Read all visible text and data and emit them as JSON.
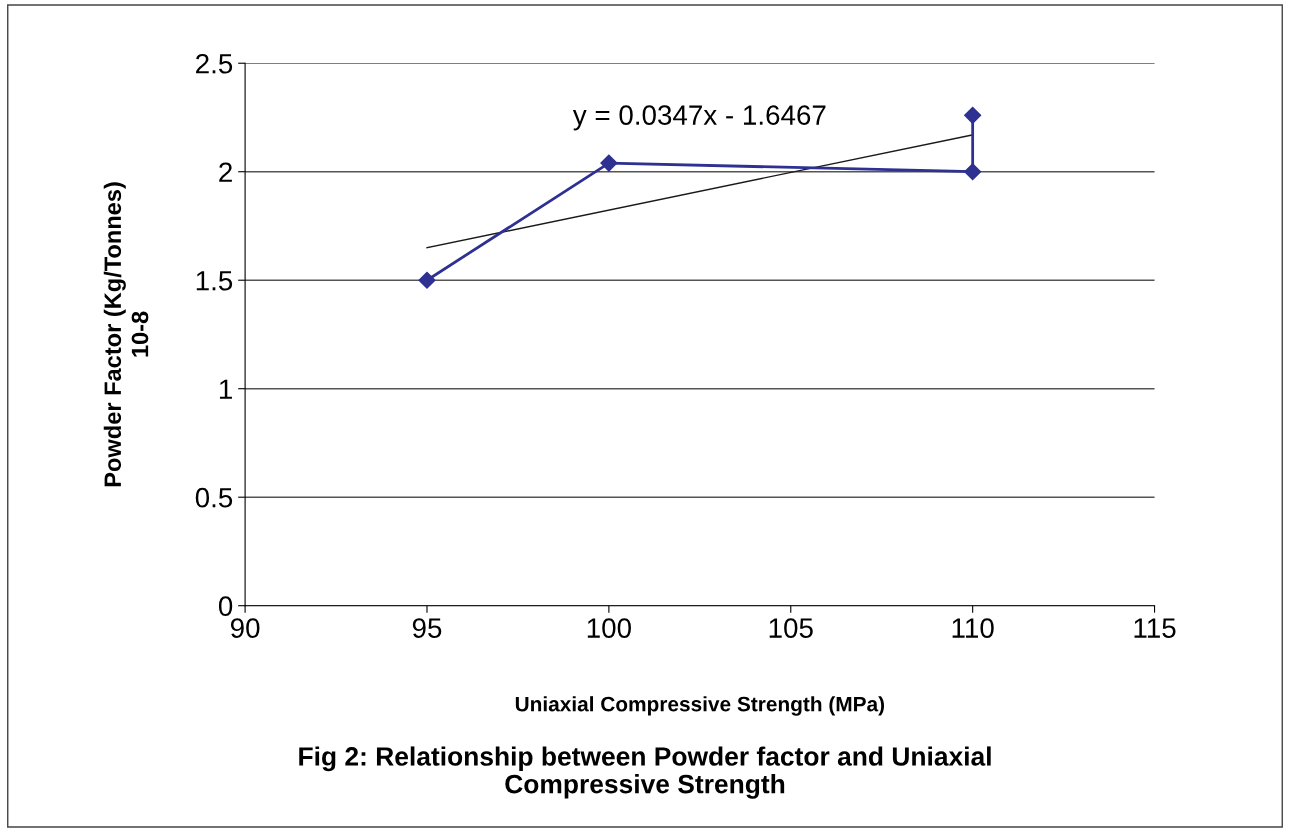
{
  "chart_data": {
    "type": "line",
    "title": "Fig 2: Relationship between Powder factor and Uniaxial\nCompressive Strength",
    "xlabel": "Uniaxial Compressive Strength (MPa)",
    "ylabel": "Powder Factor (Kg/Tonnes)\n10-8",
    "series": [
      {
        "color": "#2e3192",
        "x": [
          95,
          100,
          110,
          110
        ],
        "values": [
          1.5,
          2.04,
          2.0,
          2.26
        ],
        "marker": "diamond",
        "line_style": "solid"
      },
      {
        "color": "#1a1a1a",
        "x": [
          95,
          110
        ],
        "values": [
          1.65,
          2.17
        ],
        "marker": "none",
        "line_style": "solid"
      }
    ],
    "annotations": [
      "y = 0.0347x - 1.6467"
    ],
    "xlim": [
      90,
      115
    ],
    "xticks": [
      90,
      95,
      100,
      105,
      110,
      115
    ],
    "ylim": [
      0,
      2.5
    ],
    "yticks": [
      0,
      0.5,
      1,
      1.5,
      2,
      2.5
    ],
    "grid": "y"
  }
}
